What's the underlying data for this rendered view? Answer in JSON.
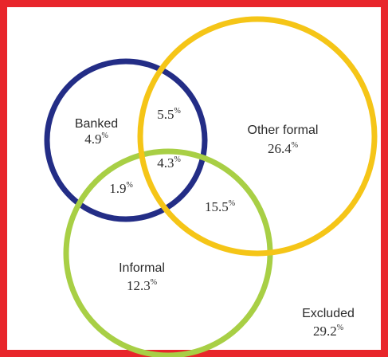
{
  "diagram": {
    "type": "venn",
    "frame_color": "#e8262b",
    "sets": [
      {
        "key": "banked",
        "color": "#232d86"
      },
      {
        "key": "other_formal",
        "color": "#f5c517"
      },
      {
        "key": "informal",
        "color": "#a8cf45"
      }
    ],
    "labels": [
      {
        "key": "banked",
        "name": "Banked",
        "value": "4.9",
        "unit": "%"
      },
      {
        "key": "banked_other",
        "name": "",
        "value": "5.5",
        "unit": "%"
      },
      {
        "key": "other_formal",
        "name": "Other formal",
        "value": "26.4",
        "unit": "%"
      },
      {
        "key": "all_three",
        "name": "",
        "value": "4.3",
        "unit": "%"
      },
      {
        "key": "banked_informal",
        "name": "",
        "value": "1.9",
        "unit": "%"
      },
      {
        "key": "other_informal",
        "name": "",
        "value": "15.5",
        "unit": "%"
      },
      {
        "key": "informal",
        "name": "Informal",
        "value": "12.3",
        "unit": "%"
      },
      {
        "key": "excluded",
        "name": "Excluded",
        "value": "29.2",
        "unit": "%"
      }
    ]
  }
}
